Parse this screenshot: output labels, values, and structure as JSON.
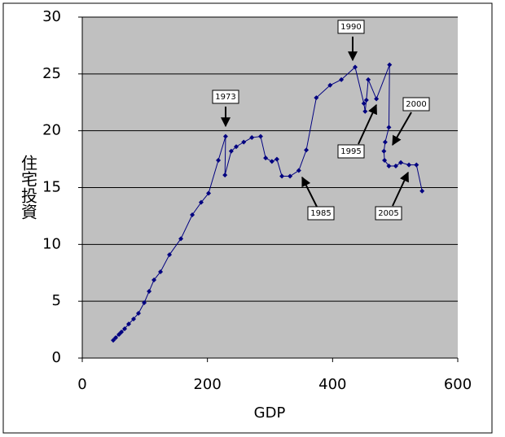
{
  "chart_data": {
    "type": "line",
    "x_label": "GDP",
    "y_label": "住宅投資",
    "x": [
      49.5,
      53.4,
      58.6,
      62.5,
      67.7,
      74.2,
      82,
      89.8,
      99,
      106.8,
      114.6,
      125,
      139.3,
      157.6,
      175.8,
      190,
      201.8,
      217.4,
      229,
      228,
      238,
      246,
      258,
      271,
      285,
      293,
      303,
      311,
      319,
      332,
      346,
      358,
      374,
      396,
      414,
      436,
      450,
      452,
      454,
      457,
      470,
      491,
      490,
      484,
      482,
      483,
      490,
      501,
      509,
      522,
      534,
      543
    ],
    "series": [
      {
        "color": "#000080",
        "values": [
          1.57,
          1.79,
          2.08,
          2.29,
          2.58,
          3.0,
          3.44,
          3.94,
          4.87,
          5.87,
          6.87,
          7.59,
          9.09,
          10.5,
          12.6,
          13.7,
          14.5,
          17.4,
          19.5,
          16.1,
          18.2,
          18.6,
          19.0,
          19.4,
          19.5,
          17.6,
          17.3,
          17.5,
          16.0,
          16.0,
          16.5,
          18.3,
          22.9,
          24.0,
          24.5,
          25.6,
          22.4,
          21.7,
          22.7,
          24.5,
          22.8,
          25.8,
          20.3,
          19.0,
          18.2,
          17.4,
          16.9,
          16.9,
          17.2,
          17.0,
          17.0,
          14.7
        ]
      }
    ],
    "xlim": [
      0,
      600
    ],
    "xticks": [
      0,
      200,
      400,
      600
    ],
    "ylim": [
      0,
      30
    ],
    "yticks": [
      0,
      5,
      10,
      15,
      20,
      25,
      30
    ],
    "grid": true,
    "plot_background": "#c0c0c0",
    "annotations": [
      "1973",
      "1990",
      "1995",
      "2000",
      "1985",
      "2005"
    ]
  }
}
